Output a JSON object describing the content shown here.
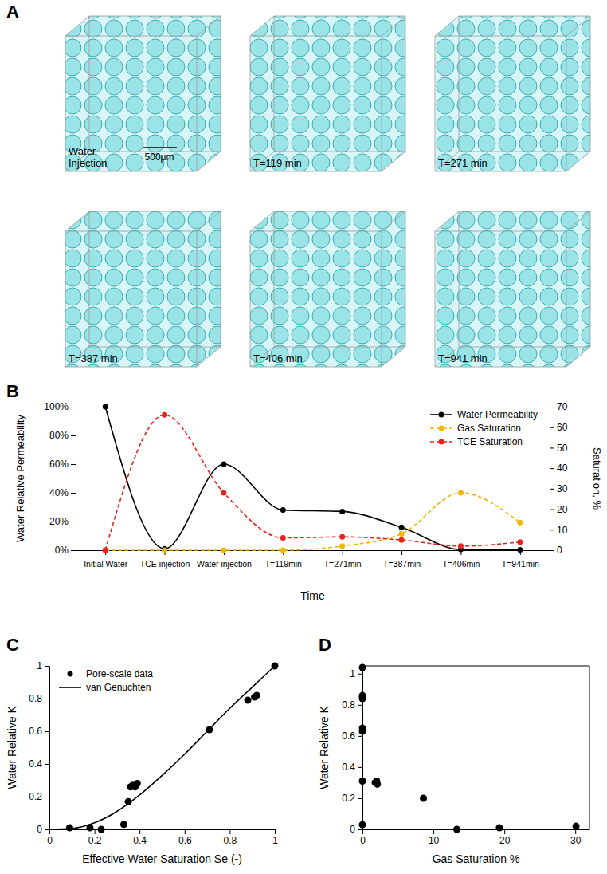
{
  "images": {
    "label": "A",
    "scale_bar": "500μm",
    "items": [
      {
        "caption": [
          "Water",
          "Injection"
        ]
      },
      {
        "caption": [
          "T=119 min"
        ]
      },
      {
        "caption": [
          "T=271 min"
        ]
      },
      {
        "caption": [
          "T=387 min"
        ]
      },
      {
        "caption": [
          "T=406 min"
        ]
      },
      {
        "caption": [
          "T=941 min"
        ]
      }
    ]
  },
  "chart_data": [
    {
      "type": "line",
      "label": "B",
      "x_label": "Time",
      "y_label": "Water Relative Permeability",
      "y2_label": "Saturation, %",
      "categories": [
        "Initial Water",
        "TCE injection",
        "Water injection",
        "T=119min",
        "T=271min",
        "T=387min",
        "T=406min",
        "T=941min"
      ],
      "ylim": [
        0,
        100
      ],
      "yticks": [
        {
          "value": 0,
          "label": "0%"
        },
        {
          "value": 20,
          "label": "20%"
        },
        {
          "value": 40,
          "label": "40%"
        },
        {
          "value": 60,
          "label": "60%"
        },
        {
          "value": 80,
          "label": "80%"
        },
        {
          "value": 100,
          "label": "100%"
        }
      ],
      "y2lim": [
        0,
        70
      ],
      "y2ticks": [
        0,
        10,
        20,
        30,
        40,
        50,
        60,
        70
      ],
      "legend": "upper right",
      "series": [
        {
          "name": "Water Permeability",
          "color": "#000000",
          "marker": "circle",
          "line_style": "solid",
          "values": [
            100,
            1,
            60,
            28,
            27,
            16,
            0.5,
            0.3
          ]
        },
        {
          "name": "Gas Saturation",
          "color": "#f2b705",
          "marker": "circle",
          "line_style": "dashed",
          "axis": "y2",
          "values": [
            0,
            0,
            0,
            0,
            2,
            8,
            28,
            13.5
          ]
        },
        {
          "name": "TCE Saturation",
          "color": "#e8231c",
          "marker": "circle",
          "line_style": "dashed",
          "axis": "y2",
          "values": [
            0,
            66,
            28,
            6,
            6.5,
            5,
            2,
            4
          ]
        }
      ]
    },
    {
      "type": "scatter",
      "label": "C",
      "x_label": "Effective Water Saturation Se (-)",
      "y_label": "Water Relative K",
      "xlim": [
        0,
        1
      ],
      "xticks": [
        0,
        0.2,
        0.4,
        0.6,
        0.8,
        1
      ],
      "ylim": [
        0,
        1
      ],
      "yticks": [
        0,
        0.2,
        0.4,
        0.6,
        0.8,
        1
      ],
      "legend": "upper left",
      "series": [
        {
          "name": "Pore-scale data",
          "type": "scatter",
          "color": "#000000",
          "marker": "circle",
          "x": [
            0.09,
            0.18,
            0.23,
            0.33,
            0.35,
            0.36,
            0.37,
            0.38,
            0.39,
            0.71,
            0.88,
            0.91,
            0.92,
            1.0
          ],
          "values": [
            0.01,
            0.01,
            0.0,
            0.03,
            0.17,
            0.26,
            0.27,
            0.26,
            0.28,
            0.61,
            0.79,
            0.81,
            0.82,
            1.0
          ]
        },
        {
          "name": "van Genuchten",
          "type": "line",
          "color": "#000000",
          "line_style": "solid",
          "x": [
            0,
            0.1,
            0.2,
            0.3,
            0.4,
            0.5,
            0.6,
            0.7,
            0.8,
            0.9,
            1.0
          ],
          "values": [
            0,
            0.005,
            0.04,
            0.11,
            0.21,
            0.33,
            0.46,
            0.6,
            0.74,
            0.87,
            1.0
          ]
        }
      ]
    },
    {
      "type": "scatter",
      "label": "D",
      "x_label": "Gas Saturation %",
      "y_label": "Water Relative K",
      "xlim": [
        0,
        32
      ],
      "xticks": [
        0,
        10,
        20,
        30
      ],
      "ylim": [
        0,
        1.05
      ],
      "yticks": [
        0,
        0.2,
        0.4,
        0.6,
        0.8,
        1
      ],
      "series": [
        {
          "type": "scatter",
          "color": "#000000",
          "marker": "circle",
          "x": [
            0,
            0,
            0,
            0,
            0,
            0,
            0,
            0,
            1.8,
            2.0,
            2.1,
            8.6,
            13.3,
            19.3,
            30.1
          ],
          "values": [
            1.04,
            0.86,
            0.85,
            0.84,
            0.65,
            0.63,
            0.31,
            0.03,
            0.3,
            0.31,
            0.29,
            0.2,
            0.0,
            0.01,
            0.02
          ]
        }
      ]
    }
  ]
}
